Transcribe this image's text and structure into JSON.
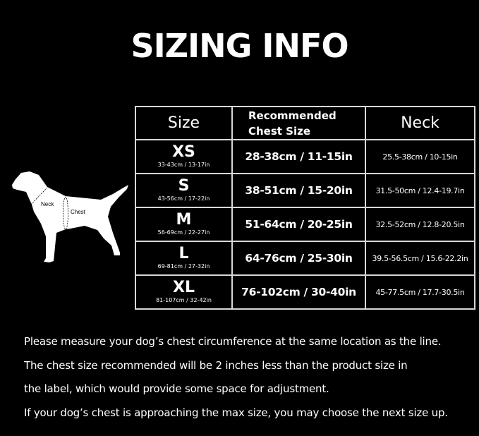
{
  "title": "SIZING INFO",
  "diagram": {
    "neck_label": "Neck",
    "chest_label": "Chest"
  },
  "table": {
    "headers": {
      "size": "Size",
      "chest_line1": "Recommended",
      "chest_line2": "Chest Size",
      "neck": "Neck"
    },
    "rows": [
      {
        "size": "XS",
        "product": "33-43cm / 13-17in",
        "chest": "28-38cm / 11-15in",
        "neck": "25.5-38cm / 10-15in"
      },
      {
        "size": "S",
        "product": "43-56cm / 17-22in",
        "chest": "38-51cm / 15-20in",
        "neck": "31.5-50cm / 12.4-19.7in"
      },
      {
        "size": "M",
        "product": "56-69cm / 22-27in",
        "chest": "51-64cm / 20-25in",
        "neck": "32.5-52cm / 12.8-20.5in"
      },
      {
        "size": "L",
        "product": "69-81cm / 27-32in",
        "chest": "64-76cm / 25-30in",
        "neck": "39.5-56.5cm / 15.6-22.2in"
      },
      {
        "size": "XL",
        "product": "81-107cm / 32-42in",
        "chest": "76-102cm / 30-40in",
        "neck": "45-77.5cm / 17.7-30.5in"
      }
    ]
  },
  "notes": [
    "Please measure your dog’s chest circumference at the same location as the line.",
    "The chest size recommended will be 2 inches less than the product size in",
    "the label, which would provide some space for adjustment.",
    "If your dog’s chest is approaching the max size, you may choose the next size up."
  ]
}
